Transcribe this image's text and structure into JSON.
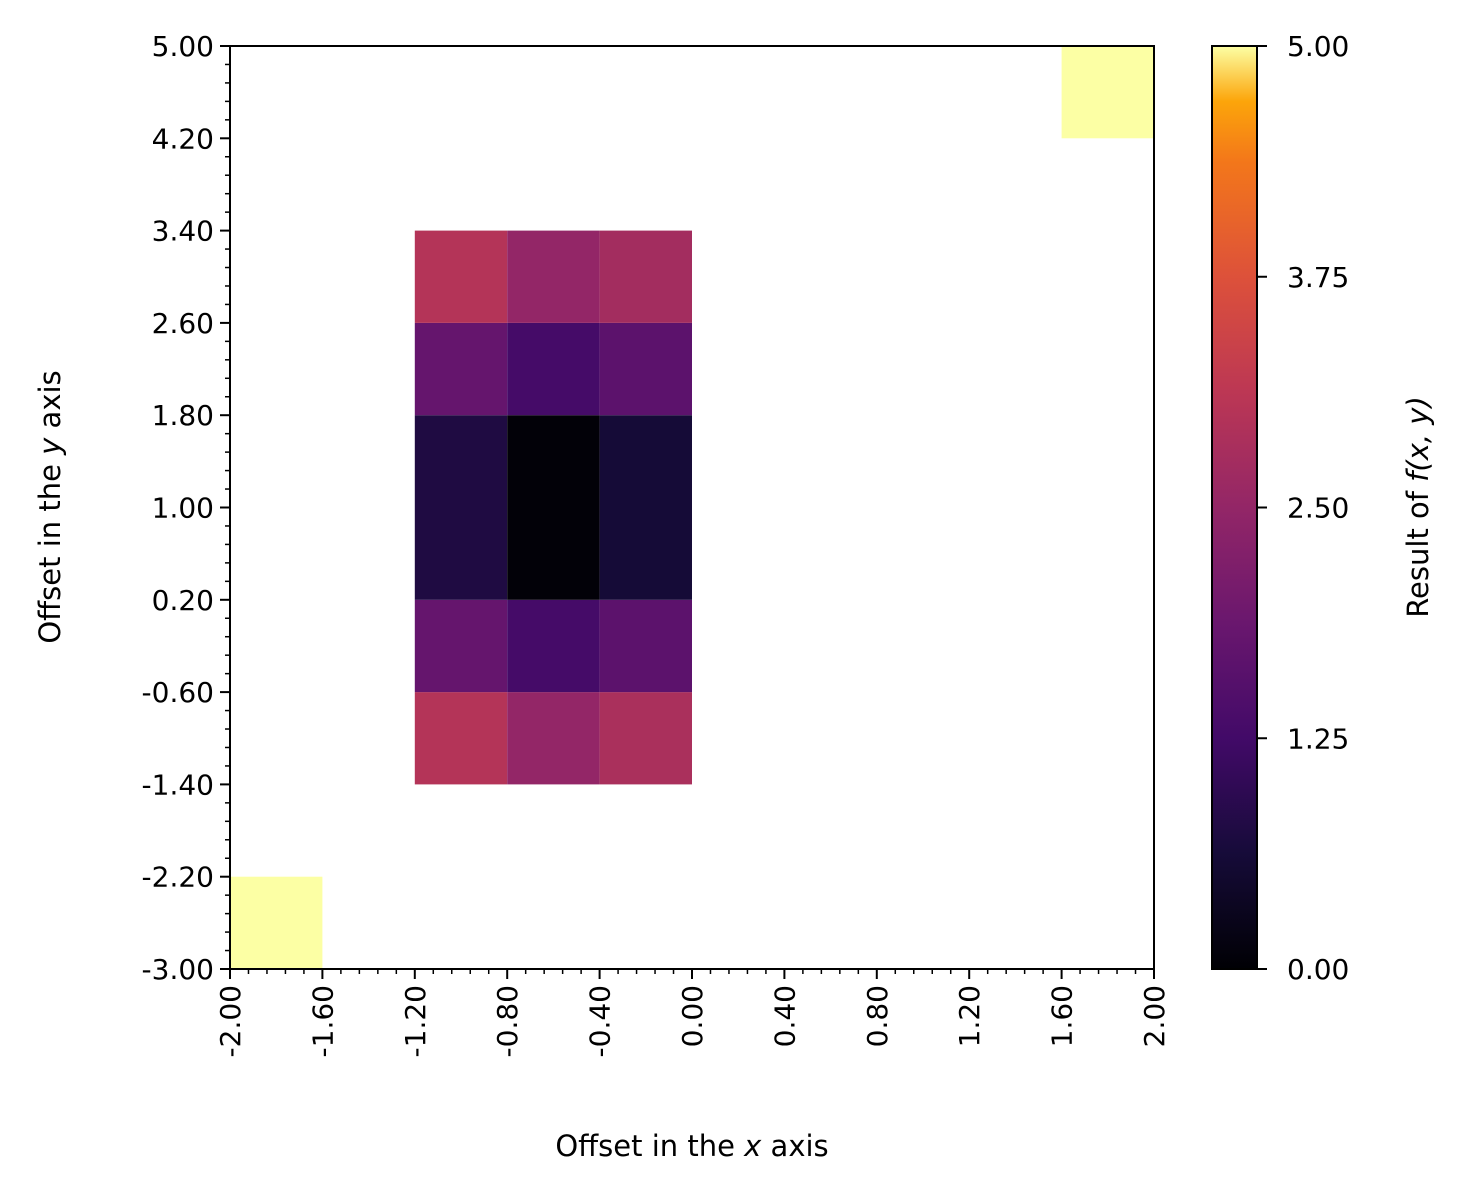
{
  "chart_data": {
    "type": "heatmap",
    "title": "",
    "xlabel": {
      "prefix": "Offset in the ",
      "var": "x",
      "suffix": " axis"
    },
    "ylabel": {
      "prefix": "Offset in the ",
      "var": "y",
      "suffix": " axis"
    },
    "xlim": [
      -2.0,
      2.0
    ],
    "ylim": [
      -3.0,
      5.0
    ],
    "x_ticks": [
      -2.0,
      -1.6,
      -1.2,
      -0.8,
      -0.4,
      0.0,
      0.4,
      0.8,
      1.2,
      1.6,
      2.0
    ],
    "x_tick_labels": [
      "-2.00",
      "-1.60",
      "-1.20",
      "-0.80",
      "-0.40",
      "0.00",
      "0.40",
      "0.80",
      "1.20",
      "1.60",
      "2.00"
    ],
    "y_ticks": [
      -3.0,
      -2.2,
      -1.4,
      -0.6,
      0.2,
      1.0,
      1.8,
      2.6,
      3.4,
      4.2,
      5.0
    ],
    "y_tick_labels": [
      "-3.00",
      "-2.20",
      "-1.40",
      "-0.60",
      "0.20",
      "1.00",
      "1.80",
      "2.60",
      "3.40",
      "4.20",
      "5.00"
    ],
    "colormap": "inferno",
    "colorbar": {
      "label": {
        "prefix": "Result of ",
        "expr": "f(x, y)"
      },
      "range": [
        0.0,
        5.0
      ],
      "ticks": [
        0.0,
        1.25,
        2.5,
        3.75,
        5.0
      ],
      "tick_labels": [
        "0.00",
        "1.25",
        "2.50",
        "3.75",
        "5.00"
      ]
    },
    "cells": [
      {
        "x0": -2.0,
        "x1": -1.6,
        "y0": -3.0,
        "y1": -2.2,
        "value": 5.0
      },
      {
        "x0": 1.6,
        "x1": 2.0,
        "y0": 4.2,
        "y1": 5.0,
        "value": 5.0
      },
      {
        "x0": -1.2,
        "x1": -0.8,
        "y0": -1.4,
        "y1": -0.6,
        "value": 3.0
      },
      {
        "x0": -0.8,
        "x1": -0.4,
        "y0": -1.4,
        "y1": -0.6,
        "value": 2.5
      },
      {
        "x0": -0.4,
        "x1": 0.0,
        "y0": -1.4,
        "y1": -0.6,
        "value": 2.85
      },
      {
        "x0": -1.2,
        "x1": -0.8,
        "y0": -0.6,
        "y1": 0.2,
        "value": 1.8
      },
      {
        "x0": -0.8,
        "x1": -0.4,
        "y0": -0.6,
        "y1": 0.2,
        "value": 1.3
      },
      {
        "x0": -0.4,
        "x1": 0.0,
        "y0": -0.6,
        "y1": 0.2,
        "value": 1.65
      },
      {
        "x0": -1.2,
        "x1": -0.8,
        "y0": 0.2,
        "y1": 1.0,
        "value": 0.75
      },
      {
        "x0": -0.8,
        "x1": -0.4,
        "y0": 0.2,
        "y1": 1.0,
        "value": 0.05
      },
      {
        "x0": -0.4,
        "x1": 0.0,
        "y0": 0.2,
        "y1": 1.0,
        "value": 0.6
      },
      {
        "x0": -1.2,
        "x1": -0.8,
        "y0": 1.0,
        "y1": 1.8,
        "value": 0.75
      },
      {
        "x0": -0.8,
        "x1": -0.4,
        "y0": 1.0,
        "y1": 1.8,
        "value": 0.05
      },
      {
        "x0": -0.4,
        "x1": 0.0,
        "y0": 1.0,
        "y1": 1.8,
        "value": 0.6
      },
      {
        "x0": -1.2,
        "x1": -0.8,
        "y0": 1.8,
        "y1": 2.6,
        "value": 1.8
      },
      {
        "x0": -0.8,
        "x1": -0.4,
        "y0": 1.8,
        "y1": 2.6,
        "value": 1.3
      },
      {
        "x0": -0.4,
        "x1": 0.0,
        "y0": 1.8,
        "y1": 2.6,
        "value": 1.65
      },
      {
        "x0": -1.2,
        "x1": -0.8,
        "y0": 2.6,
        "y1": 3.4,
        "value": 3.0
      },
      {
        "x0": -0.8,
        "x1": -0.4,
        "y0": 2.6,
        "y1": 3.4,
        "value": 2.5
      },
      {
        "x0": -0.4,
        "x1": 0.0,
        "y0": 2.6,
        "y1": 3.4,
        "value": 2.75
      }
    ]
  }
}
